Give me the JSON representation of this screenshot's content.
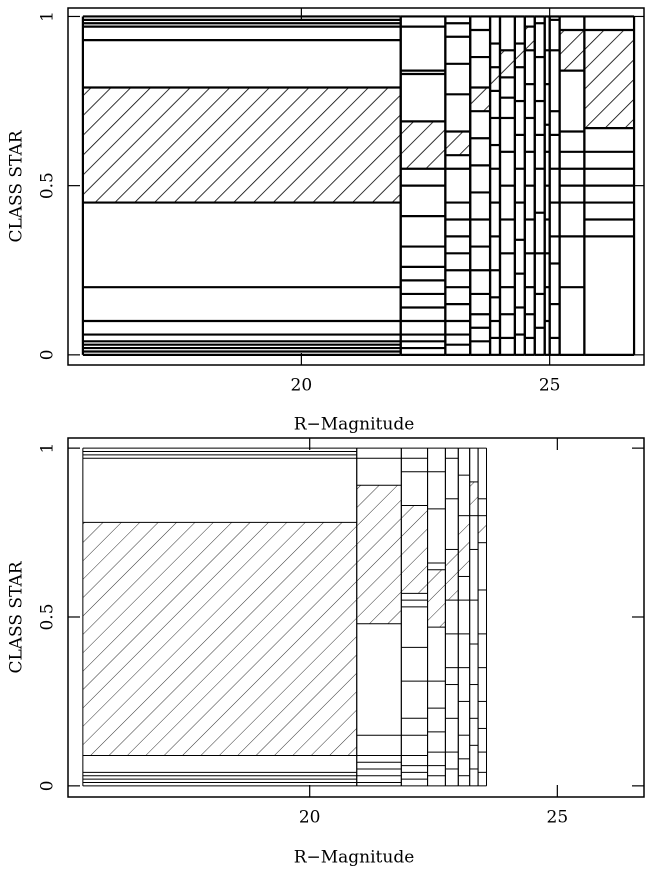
{
  "chart_data": [
    {
      "type": "mosaic",
      "xlabel": "R−Magnitude",
      "ylabel": "CLASS STAR",
      "xlim": [
        15.3,
        26.9
      ],
      "ylim": [
        -0.03,
        1.025
      ],
      "xticks": [
        20,
        25
      ],
      "yticks": [
        0,
        0.5,
        1
      ],
      "line_width": 2.2,
      "color": "#000000",
      "columns": [
        {
          "x": [
            15.6,
            22.0
          ],
          "edges": [
            0,
            0.01,
            0.02,
            0.03,
            0.04,
            0.06,
            0.1,
            0.2,
            0.45,
            0.79,
            0.93,
            0.97,
            0.98,
            0.99,
            1
          ],
          "hatched": [
            8
          ]
        },
        {
          "x": [
            22.0,
            22.9
          ],
          "edges": [
            0,
            0.02,
            0.04,
            0.06,
            0.1,
            0.14,
            0.18,
            0.22,
            0.26,
            0.32,
            0.41,
            0.5,
            0.55,
            0.69,
            0.83,
            0.84,
            0.97,
            1
          ],
          "hatched": [
            12
          ]
        },
        {
          "x": [
            22.9,
            23.4
          ],
          "edges": [
            0,
            0.03,
            0.06,
            0.1,
            0.15,
            0.2,
            0.25,
            0.3,
            0.35,
            0.4,
            0.45,
            0.55,
            0.59,
            0.66,
            0.77,
            0.86,
            0.94,
            0.98,
            1
          ],
          "hatched": [
            12
          ]
        },
        {
          "x": [
            23.4,
            23.8
          ],
          "edges": [
            0,
            0.04,
            0.08,
            0.12,
            0.18,
            0.25,
            0.32,
            0.4,
            0.48,
            0.56,
            0.64,
            0.72,
            0.79,
            0.88,
            0.96,
            1
          ],
          "hatched": [
            11
          ]
        },
        {
          "x": [
            23.8,
            24.0
          ],
          "edges": [
            0,
            0.05,
            0.1,
            0.17,
            0.25,
            0.35,
            0.45,
            0.55,
            0.62,
            0.7,
            0.78,
            0.85,
            0.92,
            1
          ],
          "hatched": [
            10
          ]
        },
        {
          "x": [
            24.0,
            24.3
          ],
          "edges": [
            0,
            0.05,
            0.12,
            0.2,
            0.3,
            0.4,
            0.5,
            0.6,
            0.7,
            0.76,
            0.82,
            0.9,
            1
          ],
          "hatched": [
            10
          ]
        },
        {
          "x": [
            24.3,
            24.5
          ],
          "edges": [
            0,
            0.06,
            0.14,
            0.24,
            0.34,
            0.45,
            0.55,
            0.65,
            0.75,
            0.85,
            0.92,
            1
          ],
          "hatched": [
            9
          ]
        },
        {
          "x": [
            24.5,
            24.7
          ],
          "edges": [
            0,
            0.05,
            0.12,
            0.2,
            0.3,
            0.4,
            0.5,
            0.6,
            0.7,
            0.8,
            0.9,
            0.97,
            1
          ],
          "hatched": [
            10
          ]
        },
        {
          "x": [
            24.7,
            24.9
          ],
          "edges": [
            0,
            0.08,
            0.18,
            0.3,
            0.42,
            0.55,
            0.65,
            0.75,
            0.88,
            0.98,
            1
          ],
          "hatched": []
        },
        {
          "x": [
            24.9,
            25.0
          ],
          "edges": [
            0,
            0.1,
            0.2,
            0.3,
            0.4,
            0.5,
            0.6,
            0.68,
            0.8,
            0.9,
            1
          ],
          "hatched": []
        },
        {
          "x": [
            25.0,
            25.2
          ],
          "edges": [
            0,
            0.05,
            0.15,
            0.27,
            0.35,
            0.45,
            0.55,
            0.65,
            0.72,
            0.9,
            0.99,
            1
          ],
          "hatched": []
        },
        {
          "x": [
            25.2,
            25.7
          ],
          "edges": [
            0,
            0.2,
            0.35,
            0.45,
            0.5,
            0.55,
            0.6,
            0.66,
            0.84,
            0.96,
            1
          ],
          "hatched": [
            8
          ]
        },
        {
          "x": [
            25.7,
            26.7
          ],
          "edges": [
            0,
            0.35,
            0.4,
            0.45,
            0.5,
            0.55,
            0.6,
            0.67,
            0.96,
            1
          ],
          "hatched": [
            7
          ]
        }
      ]
    },
    {
      "type": "mosaic",
      "xlabel": "R−Magnitude",
      "ylabel": "CLASS STAR",
      "xlim": [
        15.12,
        26.75
      ],
      "ylim": [
        -0.033,
        1.03
      ],
      "xticks": [
        20,
        25
      ],
      "yticks": [
        0,
        0.5,
        1
      ],
      "line_width": 1,
      "color": "#000000",
      "columns": [
        {
          "x": [
            15.42,
            20.95
          ],
          "edges": [
            0,
            0.01,
            0.02,
            0.03,
            0.04,
            0.09,
            0.78,
            0.97,
            0.98,
            0.99,
            1
          ],
          "hatched": [
            5
          ]
        },
        {
          "x": [
            20.95,
            21.85
          ],
          "edges": [
            0,
            0.01,
            0.03,
            0.05,
            0.07,
            0.09,
            0.15,
            0.48,
            0.89,
            0.97,
            1
          ],
          "hatched": [
            7
          ]
        },
        {
          "x": [
            21.85,
            22.38
          ],
          "edges": [
            0,
            0.02,
            0.04,
            0.06,
            0.09,
            0.15,
            0.2,
            0.31,
            0.41,
            0.53,
            0.55,
            0.57,
            0.83,
            0.93,
            0.97,
            1
          ],
          "hatched": [
            11
          ]
        },
        {
          "x": [
            22.38,
            22.74
          ],
          "edges": [
            0,
            0.03,
            0.06,
            0.1,
            0.16,
            0.23,
            0.31,
            0.47,
            0.64,
            0.66,
            0.82,
            0.93,
            1
          ],
          "hatched": [
            7
          ]
        },
        {
          "x": [
            22.74,
            23.0
          ],
          "edges": [
            0,
            0.05,
            0.1,
            0.2,
            0.3,
            0.35,
            0.45,
            0.55,
            0.7,
            0.85,
            0.97,
            1
          ],
          "hatched": [
            7
          ]
        },
        {
          "x": [
            23.0,
            23.23
          ],
          "edges": [
            0,
            0.03,
            0.08,
            0.15,
            0.25,
            0.35,
            0.45,
            0.55,
            0.62,
            0.8,
            0.92,
            1
          ],
          "hatched": [
            8
          ]
        },
        {
          "x": [
            23.23,
            23.4
          ],
          "edges": [
            0,
            0.05,
            0.12,
            0.2,
            0.3,
            0.42,
            0.55,
            0.7,
            0.8,
            0.9,
            1
          ],
          "hatched": [
            8
          ]
        },
        {
          "x": [
            23.4,
            23.57
          ],
          "edges": [
            0,
            0.04,
            0.1,
            0.17,
            0.25,
            0.35,
            0.45,
            0.58,
            0.72,
            0.8,
            0.85,
            1
          ],
          "hatched": [
            8
          ]
        }
      ]
    }
  ]
}
